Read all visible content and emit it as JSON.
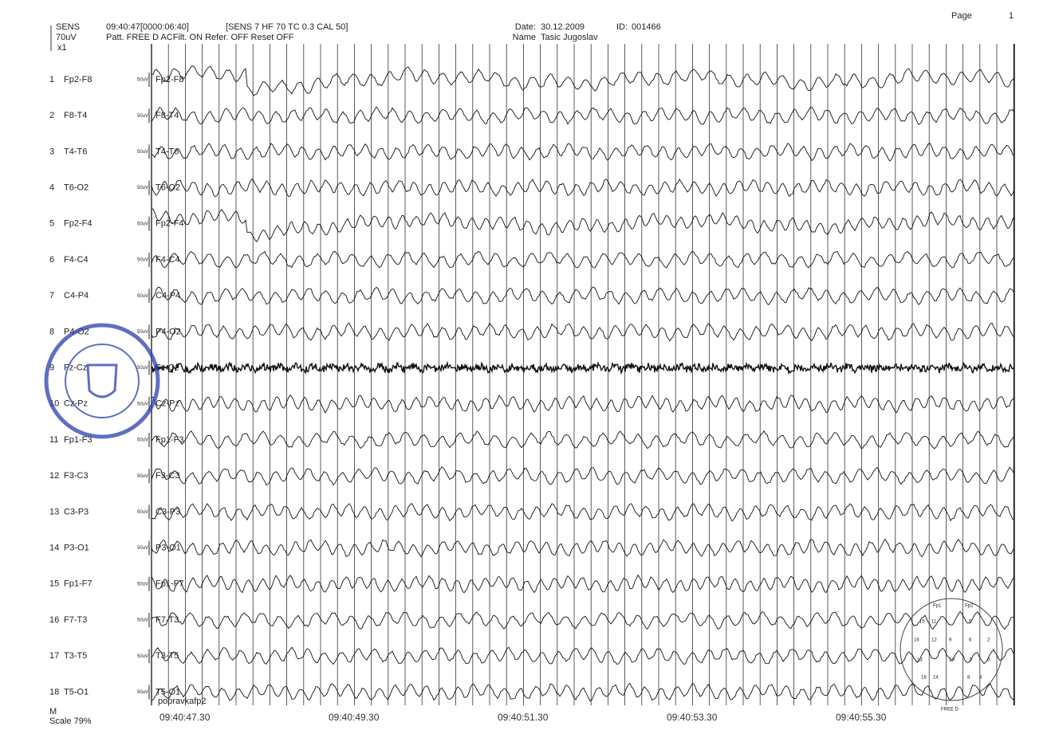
{
  "header": {
    "sens": "SENS",
    "sens_value": "70uV",
    "gain": "x1",
    "time": "09:40:47[0000:06:40]",
    "settings": "[SENS 7  HF 70  TC 0.3  CAL 50]",
    "pattern": "Patt. FREE D  ACFilt. ON  Refer. OFF  Reset OFF",
    "date_label": "Date:",
    "date": "30.12.2009",
    "id_label": "ID:",
    "id": "001466",
    "name_label": "Name",
    "name": "Tasic Jugoslav",
    "page_label": "Page",
    "page": "1"
  },
  "channels": [
    {
      "number": "1",
      "label": "Fp2-F8",
      "scale": "50uV"
    },
    {
      "number": "2",
      "label": "F8-T4",
      "scale": "50uV"
    },
    {
      "number": "3",
      "label": "T4-T6",
      "scale": "50uV"
    },
    {
      "number": "4",
      "label": "T6-O2",
      "scale": "50uV"
    },
    {
      "number": "5",
      "label": "Fp2-F4",
      "scale": "50uV"
    },
    {
      "number": "6",
      "label": "F4-C4",
      "scale": "50uV"
    },
    {
      "number": "7",
      "label": "C4-P4",
      "scale": "50uV"
    },
    {
      "number": "8",
      "label": "P4-O2",
      "scale": "50uV"
    },
    {
      "number": "9",
      "label": "Fz-Cz",
      "scale": "50uV"
    },
    {
      "number": "10",
      "label": "Cz-Pz",
      "scale": "50uV"
    },
    {
      "number": "11",
      "label": "Fp1-F3",
      "scale": "50uV"
    },
    {
      "number": "12",
      "label": "F3-C3",
      "scale": "50uV"
    },
    {
      "number": "13",
      "label": "C3-P3",
      "scale": "50uV"
    },
    {
      "number": "14",
      "label": "P3-O1",
      "scale": "50uV"
    },
    {
      "number": "15",
      "label": "Fp1-F7",
      "scale": "50uV"
    },
    {
      "number": "16",
      "label": "F7-T3",
      "scale": "50uV"
    },
    {
      "number": "17",
      "label": "T3-T5",
      "scale": "50uV"
    },
    {
      "number": "18",
      "label": "T5-O1",
      "scale": "50uV"
    }
  ],
  "note": "popravkafp2",
  "footer": {
    "m": "M",
    "scale": "Scale 79%"
  },
  "time_labels": [
    "09:40:47.30",
    "09:40:49.30",
    "09:40:51.30",
    "09:40:53.30",
    "09:40:55.30"
  ],
  "montage": {
    "left": "Fp1",
    "right": "Fp2",
    "name": "FREE D",
    "electrodes": [
      "15",
      "11",
      "12",
      "9",
      "6",
      "2",
      "13",
      "10",
      "7",
      "3",
      "18",
      "14",
      "8",
      "4",
      "16",
      "5"
    ]
  }
}
